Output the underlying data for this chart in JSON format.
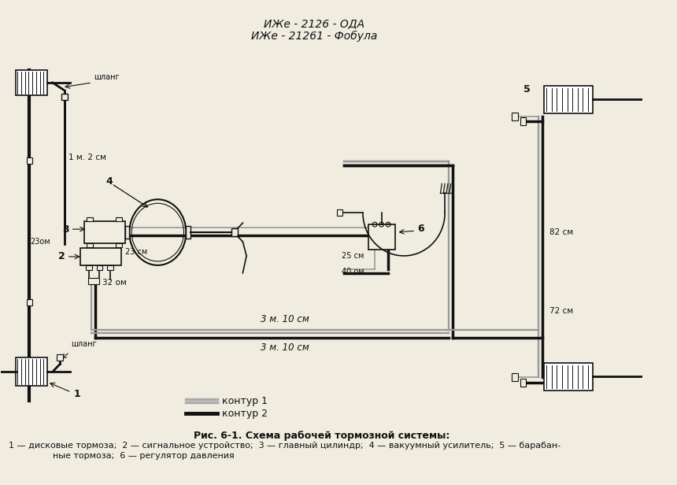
{
  "title_handwritten_line1": "ИЖе - 2126 - ОДА",
  "title_handwritten_line2": "ИЖе - 21261 - Фобула",
  "fig_title": "Рис. 6-1. Схема рабочей тормозной системы:",
  "caption_line1": "1 — дисковые тормоза;  2 — сигнальное устройство;  3 — главный цилиндр;  4 — вакуумный усилитель;  5 — барабан-",
  "caption_line2": "                ные тормоза;  6 — регулятор давления",
  "legend_kontour1": "контур 1",
  "legend_kontour2": "контур 2",
  "bg_color": "#f0ece0",
  "line_color": "#111111",
  "text_color": "#111111"
}
